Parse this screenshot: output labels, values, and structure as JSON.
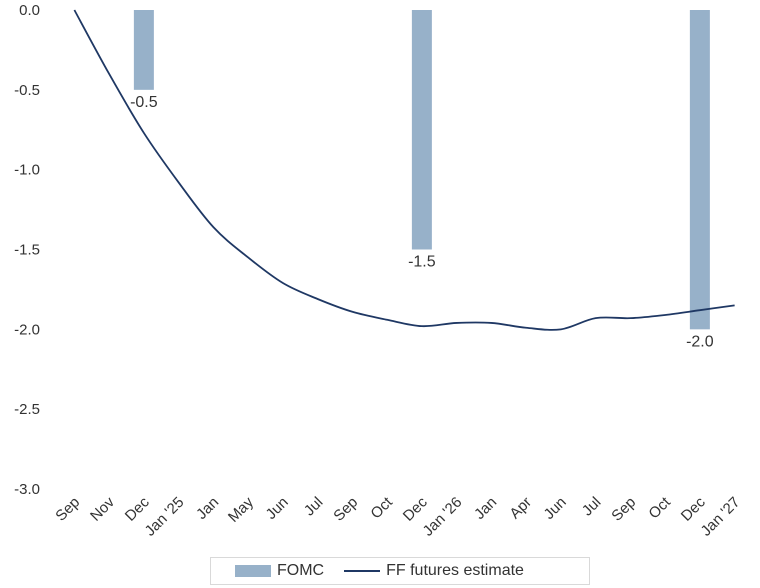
{
  "chart_data": {
    "type": "bar+line",
    "categories": [
      "Sep",
      "Nov",
      "Dec",
      "Jan '25",
      "Jan",
      "May",
      "Jun",
      "Jul",
      "Sep",
      "Oct",
      "Dec",
      "Jan '26",
      "Jan",
      "Apr",
      "Jun",
      "Jul",
      "Sep",
      "Oct",
      "Dec",
      "Jan '27"
    ],
    "series": [
      {
        "name": "FOMC",
        "kind": "bar",
        "color": "#97b1c9",
        "values": [
          null,
          null,
          -0.5,
          null,
          null,
          null,
          null,
          null,
          null,
          null,
          -1.5,
          null,
          null,
          null,
          null,
          null,
          null,
          null,
          -2.0,
          null
        ],
        "data_labels": [
          "",
          "",
          "-0.5",
          "",
          "",
          "",
          "",
          "",
          "",
          "",
          "-1.5",
          "",
          "",
          "",
          "",
          "",
          "",
          "",
          "-2.0",
          ""
        ]
      },
      {
        "name": "FF futures estimate",
        "kind": "line",
        "color": "#1f3864",
        "values": [
          0.0,
          -0.4,
          -0.77,
          -1.08,
          -1.36,
          -1.55,
          -1.71,
          -1.81,
          -1.89,
          -1.94,
          -1.98,
          -1.96,
          -1.96,
          -1.99,
          -2.0,
          -1.93,
          -1.93,
          -1.91,
          -1.88,
          -1.85
        ]
      }
    ],
    "ylim": [
      -3.0,
      0.0
    ],
    "yticks": [
      "0.0",
      "-0.5",
      "-1.0",
      "-1.5",
      "-2.0",
      "-2.5",
      "-3.0"
    ],
    "ytick_values": [
      0.0,
      -0.5,
      -1.0,
      -1.5,
      -2.0,
      -2.5,
      -3.0
    ],
    "grid": false,
    "legend_position": "bottom"
  },
  "legend": {
    "fomc_label": "FOMC",
    "ff_label": "FF futures estimate"
  }
}
